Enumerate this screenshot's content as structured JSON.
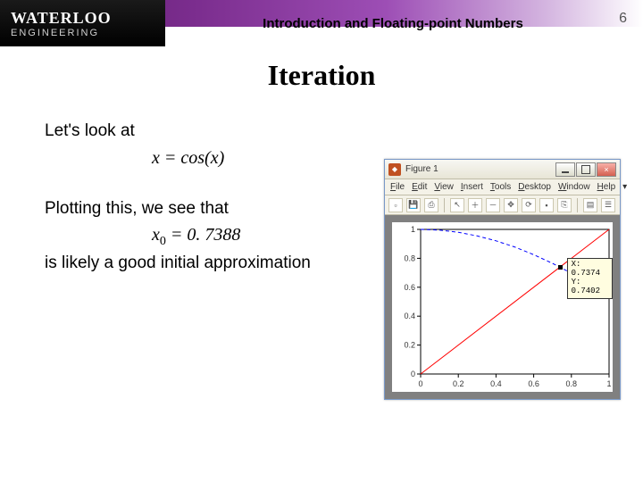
{
  "header": {
    "logo_main": "WATERLOO",
    "logo_sub": "ENGINEERING",
    "running_title": "Introduction and Floating-point Numbers",
    "page_number": "6"
  },
  "slide": {
    "title": "Iteration",
    "line1": "Let's look at",
    "equation1": "x = cos(x)",
    "line2": "Plotting this, we see that",
    "equation2_var": "x",
    "equation2_sub": "0",
    "equation2_rhs": " = 0. 7388",
    "line3": "is likely a good initial approximation"
  },
  "figure": {
    "window_title": "Figure 1",
    "menus": [
      "File",
      "Edit",
      "View",
      "Insert",
      "Tools",
      "Desktop",
      "Window",
      "Help"
    ],
    "toolbar_icons": [
      "new-file-icon",
      "save-icon",
      "print-icon",
      "pointer-icon",
      "zoom-in-icon",
      "zoom-out-icon",
      "pan-icon",
      "rotate-icon",
      "datatip-icon",
      "brush-icon",
      "link-icon",
      "colorbar-icon",
      "legend-icon"
    ],
    "plot": {
      "xlim": [
        0,
        1
      ],
      "ylim": [
        0,
        1
      ],
      "xticks": [
        0,
        0.2,
        0.4,
        0.6,
        0.8,
        1
      ],
      "yticks": [
        0,
        0.2,
        0.4,
        0.6,
        0.8,
        1
      ],
      "background_color": "#ffffff",
      "axis_color": "#000000",
      "tick_fontsize": 9,
      "grid": false,
      "series": [
        {
          "name": "cos(x)",
          "type": "line",
          "color": "#0000ff",
          "dash": "4 3",
          "width": 1,
          "points": [
            [
              0,
              1.0
            ],
            [
              0.1,
              0.995
            ],
            [
              0.2,
              0.98
            ],
            [
              0.3,
              0.955
            ],
            [
              0.4,
              0.921
            ],
            [
              0.5,
              0.878
            ],
            [
              0.6,
              0.825
            ],
            [
              0.7,
              0.765
            ],
            [
              0.8,
              0.697
            ],
            [
              0.9,
              0.622
            ],
            [
              1.0,
              0.54
            ]
          ]
        },
        {
          "name": "y=x",
          "type": "line",
          "color": "#ff0000",
          "dash": "none",
          "width": 1,
          "points": [
            [
              0,
              0
            ],
            [
              1,
              1
            ]
          ]
        }
      ],
      "datatip": {
        "x_label": "X: 0.7374",
        "y_label": "Y: 0.7402",
        "marker_xy": [
          0.7374,
          0.7402
        ]
      }
    }
  }
}
